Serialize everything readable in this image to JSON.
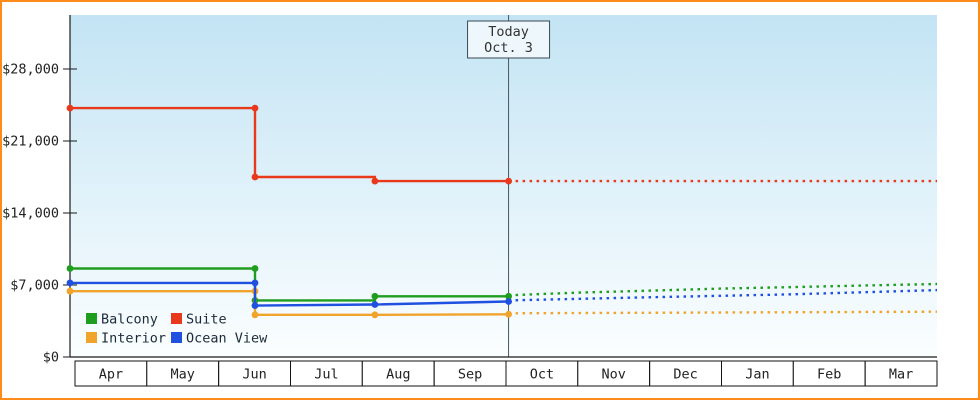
{
  "frame": {
    "border_color": "#ff8c1a",
    "background": "#ffffff"
  },
  "chart_data": {
    "type": "line",
    "title": "",
    "plot_gradient": {
      "top": "#c3e4f4",
      "bottom": "#fbfeff"
    },
    "today_marker": {
      "lines": [
        "Today",
        "Oct. 3"
      ],
      "month_position": 6.07
    },
    "y_axis": {
      "ticks": [
        {
          "value": 0,
          "label": "$0"
        },
        {
          "value": 7000,
          "label": "$7,000"
        },
        {
          "value": 14000,
          "label": "$14,000"
        },
        {
          "value": 21000,
          "label": "$21,000"
        },
        {
          "value": 28000,
          "label": "$28,000"
        }
      ],
      "ylim": [
        0,
        33250
      ],
      "grid": false
    },
    "x_axis": {
      "months": [
        "Apr",
        "May",
        "Jun",
        "Jul",
        "Aug",
        "Sep",
        "Oct",
        "Nov",
        "Dec",
        "Jan",
        "Feb",
        "Mar"
      ]
    },
    "series": [
      {
        "name": "Balcony",
        "color": "#1f9d1f",
        "solid_points": [
          [
            0,
            8600
          ],
          [
            2.56,
            8600
          ],
          [
            2.56,
            5500
          ],
          [
            4.22,
            5500
          ],
          [
            4.22,
            5900
          ],
          [
            6.07,
            5900
          ]
        ],
        "dotted_points": [
          [
            6.07,
            6000
          ],
          [
            7,
            6250
          ],
          [
            8,
            6450
          ],
          [
            9,
            6650
          ],
          [
            10,
            6800
          ],
          [
            11,
            6950
          ],
          [
            12,
            7100
          ]
        ],
        "marker_points": [
          [
            0,
            8600
          ],
          [
            2.56,
            8600
          ],
          [
            2.56,
            5500
          ],
          [
            4.22,
            5900
          ],
          [
            6.07,
            5900
          ]
        ]
      },
      {
        "name": "Suite",
        "color": "#e8391c",
        "solid_points": [
          [
            0,
            24200
          ],
          [
            2.56,
            24200
          ],
          [
            2.56,
            17500
          ],
          [
            4.22,
            17500
          ],
          [
            4.22,
            17100
          ],
          [
            6.07,
            17100
          ]
        ],
        "dotted_points": [
          [
            6.07,
            17100
          ],
          [
            12,
            17100
          ]
        ],
        "marker_points": [
          [
            0,
            24200
          ],
          [
            2.56,
            24200
          ],
          [
            2.56,
            17500
          ],
          [
            4.22,
            17100
          ],
          [
            6.07,
            17100
          ]
        ]
      },
      {
        "name": "Interior",
        "color": "#f0a42c",
        "solid_points": [
          [
            0,
            6400
          ],
          [
            2.56,
            6400
          ],
          [
            2.56,
            4100
          ],
          [
            4.22,
            4100
          ],
          [
            6.07,
            4150
          ]
        ],
        "dotted_points": [
          [
            6.07,
            4250
          ],
          [
            12,
            4400
          ]
        ],
        "marker_points": [
          [
            0,
            6400
          ],
          [
            2.56,
            6400
          ],
          [
            2.56,
            4100
          ],
          [
            4.22,
            4100
          ],
          [
            6.07,
            4150
          ]
        ]
      },
      {
        "name": "Ocean View",
        "color": "#2050e0",
        "solid_points": [
          [
            0,
            7200
          ],
          [
            2.56,
            7200
          ],
          [
            2.56,
            5000
          ],
          [
            4.22,
            5100
          ],
          [
            6.07,
            5400
          ]
        ],
        "dotted_points": [
          [
            6.07,
            5500
          ],
          [
            7,
            5650
          ],
          [
            8,
            5800
          ],
          [
            9,
            5950
          ],
          [
            10,
            6100
          ],
          [
            11,
            6300
          ],
          [
            12,
            6500
          ]
        ],
        "marker_points": [
          [
            0,
            7200
          ],
          [
            2.56,
            7200
          ],
          [
            2.56,
            5000
          ],
          [
            4.22,
            5100
          ],
          [
            6.07,
            5400
          ]
        ]
      }
    ],
    "legend": {
      "position": "bottom-left",
      "items": [
        {
          "label": "Balcony",
          "color": "#1f9d1f"
        },
        {
          "label": "Suite",
          "color": "#e8391c"
        },
        {
          "label": "Interior",
          "color": "#f0a42c"
        },
        {
          "label": "Ocean View",
          "color": "#2050e0"
        }
      ]
    }
  }
}
